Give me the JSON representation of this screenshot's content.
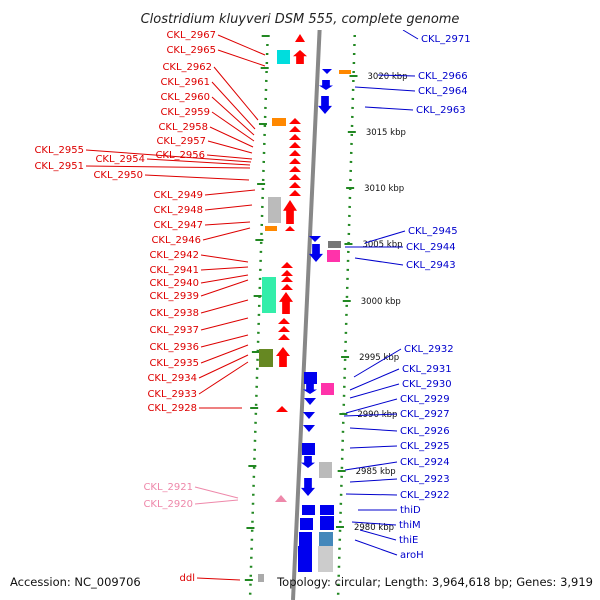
{
  "title": "Clostridium kluyveri DSM 555, complete genome",
  "accession": "Accession: NC_009706",
  "topology": "Topology: circular; Length: 3,964,618 bp; Genes: 3,919",
  "colors": {
    "forward_label": "#dd0000",
    "reverse_label": "#0000cc",
    "pseudo_label": "#ee88aa",
    "backbone": "#888888",
    "ticks": "#228822"
  },
  "kbp_marks": [
    {
      "label": "3020 kbp"
    },
    {
      "label": "3015 kbp"
    },
    {
      "label": "3010 kbp"
    },
    {
      "label": "3005 kbp"
    },
    {
      "label": "3000 kbp"
    },
    {
      "label": "2995 kbp"
    },
    {
      "label": "2990 kbp"
    },
    {
      "label": "2985 kbp"
    },
    {
      "label": "2980 kbp"
    }
  ],
  "left_labels": [
    {
      "text": "CKL_2967",
      "color": "red"
    },
    {
      "text": "CKL_2965",
      "color": "red"
    },
    {
      "text": "CKL_2962",
      "color": "red"
    },
    {
      "text": "CKL_2961",
      "color": "red"
    },
    {
      "text": "CKL_2960",
      "color": "red"
    },
    {
      "text": "CKL_2959",
      "color": "red"
    },
    {
      "text": "CKL_2958",
      "color": "red"
    },
    {
      "text": "CKL_2957",
      "color": "red"
    },
    {
      "text": "CKL_2956",
      "color": "red"
    },
    {
      "text": "CKL_2955",
      "color": "red"
    },
    {
      "text": "CKL_2954",
      "color": "red"
    },
    {
      "text": "CKL_2951",
      "color": "red"
    },
    {
      "text": "CKL_2950",
      "color": "red"
    },
    {
      "text": "CKL_2949",
      "color": "red"
    },
    {
      "text": "CKL_2948",
      "color": "red"
    },
    {
      "text": "CKL_2947",
      "color": "red"
    },
    {
      "text": "CKL_2946",
      "color": "red"
    },
    {
      "text": "CKL_2942",
      "color": "red"
    },
    {
      "text": "CKL_2941",
      "color": "red"
    },
    {
      "text": "CKL_2940",
      "color": "red"
    },
    {
      "text": "CKL_2939",
      "color": "red"
    },
    {
      "text": "CKL_2938",
      "color": "red"
    },
    {
      "text": "CKL_2937",
      "color": "red"
    },
    {
      "text": "CKL_2936",
      "color": "red"
    },
    {
      "text": "CKL_2935",
      "color": "red"
    },
    {
      "text": "CKL_2934",
      "color": "red"
    },
    {
      "text": "CKL_2933",
      "color": "red"
    },
    {
      "text": "CKL_2928",
      "color": "red"
    },
    {
      "text": "CKL_2921",
      "color": "pink"
    },
    {
      "text": "CKL_2920",
      "color": "pink"
    },
    {
      "text": "ddl",
      "color": "red"
    }
  ],
  "right_labels": [
    {
      "text": "CKL_2971"
    },
    {
      "text": "CKL_2966"
    },
    {
      "text": "CKL_2964"
    },
    {
      "text": "CKL_2963"
    },
    {
      "text": "CKL_2945"
    },
    {
      "text": "CKL_2944"
    },
    {
      "text": "CKL_2943"
    },
    {
      "text": "CKL_2932"
    },
    {
      "text": "CKL_2931"
    },
    {
      "text": "CKL_2930"
    },
    {
      "text": "CKL_2929"
    },
    {
      "text": "CKL_2927"
    },
    {
      "text": "CKL_2926"
    },
    {
      "text": "CKL_2925"
    },
    {
      "text": "CKL_2924"
    },
    {
      "text": "CKL_2923"
    },
    {
      "text": "CKL_2922"
    },
    {
      "text": "thiD"
    },
    {
      "text": "thiM"
    },
    {
      "text": "thiE"
    },
    {
      "text": "aroH"
    }
  ]
}
